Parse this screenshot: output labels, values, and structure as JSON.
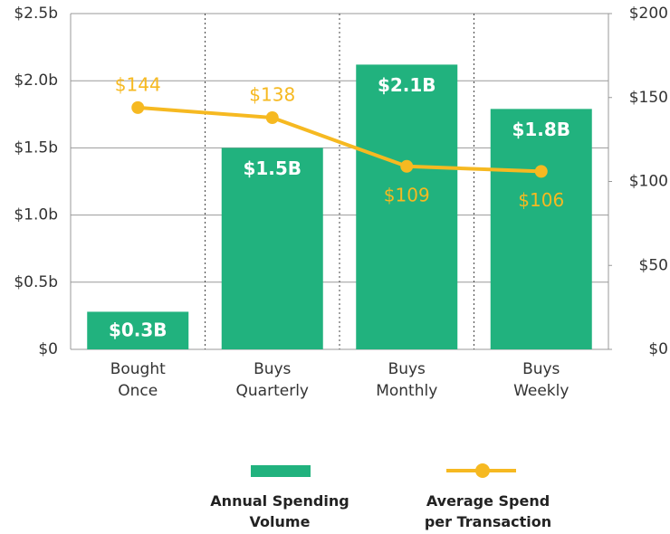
{
  "chart_data": {
    "type": "bar_line",
    "categories": [
      "Bought Once",
      "Buys Quarterly",
      "Buys Monthly",
      "Buys Weekly"
    ],
    "series": [
      {
        "name": "Annual Spending Volume",
        "type": "bar",
        "color": "#21b27e",
        "values": [
          0.28,
          1.5,
          2.12,
          1.79
        ],
        "value_labels": [
          "$0.3B",
          "$1.5B",
          "$2.1B",
          "$1.8B"
        ]
      },
      {
        "name": "Average Spend per Transaction",
        "type": "line",
        "axis": "y2",
        "color": "#f6b921",
        "values": [
          144,
          138,
          109,
          106
        ],
        "value_labels": [
          "$144",
          "$138",
          "$109",
          "$106"
        ]
      }
    ],
    "ylim": [
      0,
      2.5
    ],
    "yticks": [
      {
        "value": 0,
        "label": "$0"
      },
      {
        "value": 0.5,
        "label": "$0.5b"
      },
      {
        "value": 1.0,
        "label": "$1.0b"
      },
      {
        "value": 1.5,
        "label": "$1.5b"
      },
      {
        "value": 2.0,
        "label": "$2.0b"
      },
      {
        "value": 2.5,
        "label": "$2.5b"
      }
    ],
    "y2lim": [
      0,
      200
    ],
    "y2ticks": [
      {
        "value": 0,
        "label": "$0"
      },
      {
        "value": 50,
        "label": "$50"
      },
      {
        "value": 100,
        "label": "$100"
      },
      {
        "value": 150,
        "label": "$150"
      },
      {
        "value": 200,
        "label": "$200"
      }
    ],
    "grid": true
  }
}
